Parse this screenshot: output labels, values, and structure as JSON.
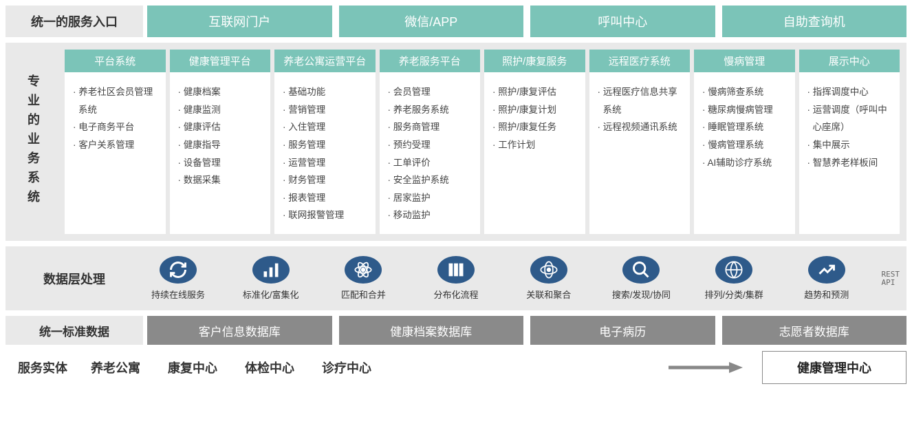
{
  "colors": {
    "teal": "#7bc4b8",
    "grey_bg": "#e9e9e9",
    "grey_dark": "#8a8a8a",
    "icon_blue": "#2e5a8a",
    "text": "#333333",
    "white": "#ffffff"
  },
  "typography": {
    "section_label_fontsize": 18,
    "col_head_fontsize": 15,
    "col_body_fontsize": 13.5,
    "data_label_fontsize": 13,
    "db_fontsize": 17,
    "entity_fontsize": 18
  },
  "row1": {
    "label": "统一的服务入口",
    "portals": [
      "互联网门户",
      "微信/APP",
      "呼叫中心",
      "自助查询机"
    ]
  },
  "row2": {
    "label": "专业的业务系统",
    "columns": [
      {
        "head": "平台系统",
        "items": [
          "养老社区会员管理系统",
          "电子商务平台",
          "客户关系管理"
        ]
      },
      {
        "head": "健康管理平台",
        "items": [
          "健康档案",
          "健康监测",
          "健康评估",
          "健康指导",
          "设备管理",
          "数据采集"
        ]
      },
      {
        "head": "养老公寓运营平台",
        "items": [
          "基础功能",
          "营销管理",
          "入住管理",
          "服务管理",
          "运营管理",
          "财务管理",
          "报表管理",
          "联网报警管理"
        ]
      },
      {
        "head": "养老服务平台",
        "items": [
          "会员管理",
          "养老服务系统",
          "服务商管理",
          "预约受理",
          "工单评价",
          "安全监护系统",
          "居家监护",
          "移动监护"
        ]
      },
      {
        "head": "照护/康复服务",
        "items": [
          "照护/康复评估",
          "照护/康复计划",
          "照护/康复任务",
          "工作计划"
        ]
      },
      {
        "head": "远程医疗系统",
        "items": [
          "远程医疗信息共享系统",
          "远程视频通讯系统"
        ]
      },
      {
        "head": "慢病管理",
        "items": [
          "慢病筛查系统",
          "糖尿病慢病管理",
          "睡眠管理系统",
          "慢病管理系统",
          "AI辅助诊疗系统"
        ]
      },
      {
        "head": "展示中心",
        "items": [
          "指挥调度中心",
          "运营调度（呼叫中心座席）",
          "集中展示",
          "智慧养老样板间"
        ]
      }
    ]
  },
  "row3": {
    "label": "数据层处理",
    "items": [
      {
        "icon": "refresh-icon",
        "label": "持续在线服务"
      },
      {
        "icon": "bars-icon",
        "label": "标准化/富集化"
      },
      {
        "icon": "atom-icon",
        "label": "匹配和合并"
      },
      {
        "icon": "grid-icon",
        "label": "分布化流程"
      },
      {
        "icon": "link-icon",
        "label": "关联和聚合"
      },
      {
        "icon": "search-icon",
        "label": "搜索/发现/协同"
      },
      {
        "icon": "globe-icon",
        "label": "排列/分类/集群"
      },
      {
        "icon": "trend-icon",
        "label": "趋势和预测"
      }
    ],
    "rest_label": "REST\nAPI"
  },
  "row4": {
    "label": "统一标准数据",
    "dbs": [
      "客户信息数据库",
      "健康档案数据库",
      "电子病历",
      "志愿者数据库"
    ]
  },
  "row5": {
    "label": "服务实体",
    "entities": [
      "养老公寓",
      "康复中心",
      "体检中心",
      "诊疗中心"
    ],
    "target": "健康管理中心"
  }
}
